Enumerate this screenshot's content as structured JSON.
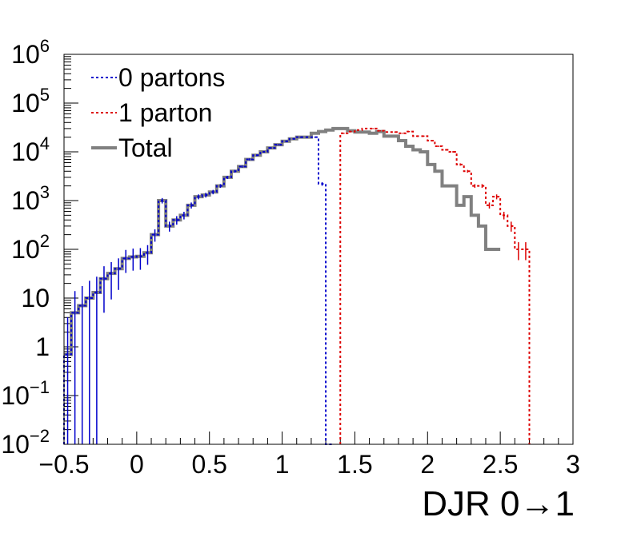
{
  "chart_data": {
    "type": "line",
    "title": "",
    "xlabel": "DJR 0→1",
    "ylabel": "",
    "xlim": [
      -0.5,
      3.0
    ],
    "ylim": [
      0.01,
      1000000
    ],
    "yscale": "log",
    "step": true,
    "x_ticks": [
      -0.5,
      0,
      0.5,
      1,
      1.5,
      2,
      2.5,
      3
    ],
    "x_tick_labels": [
      "−0.5",
      "0",
      "0.5",
      "1",
      "1.5",
      "2",
      "2.5",
      "3"
    ],
    "y_ticks": [
      {
        "value": 0.01,
        "base": "10",
        "exp": "−2"
      },
      {
        "value": 0.1,
        "base": "10",
        "exp": "−1"
      },
      {
        "value": 1,
        "base": "1",
        "exp": ""
      },
      {
        "value": 10,
        "base": "10",
        "exp": ""
      },
      {
        "value": 100,
        "base": "10",
        "exp": "2"
      },
      {
        "value": 1000,
        "base": "10",
        "exp": "3"
      },
      {
        "value": 10000,
        "base": "10",
        "exp": "4"
      },
      {
        "value": 100000,
        "base": "10",
        "exp": "5"
      },
      {
        "value": 1000000,
        "base": "10",
        "exp": "6"
      }
    ],
    "grid": false,
    "legend_position": "top-left",
    "bin_width": 0.05,
    "bin_start": -0.5,
    "series": [
      {
        "name": "0 partons",
        "color": "#0000cc",
        "style": "dotted",
        "start": -0.5,
        "values": [
          0.7,
          5,
          7,
          10,
          13,
          25,
          32,
          40,
          65,
          70,
          72,
          85,
          200,
          1000,
          300,
          400,
          500,
          800,
          1200,
          1300,
          1500,
          2000,
          3000,
          4000,
          5000,
          7000,
          8500,
          10000,
          12000,
          14000,
          16500,
          18500,
          20000,
          20000,
          20000,
          2200,
          0.01
        ]
      },
      {
        "name": "1 parton",
        "color": "#dd0000",
        "style": "dotted",
        "start": 1.4,
        "values": [
          24000,
          26000,
          28000,
          30000,
          30000,
          27000,
          25500,
          25500,
          24000,
          26000,
          21000,
          21000,
          17000,
          13000,
          11000,
          10000,
          5500,
          4000,
          2000,
          2000,
          800,
          1200,
          500,
          300,
          100,
          100
        ]
      },
      {
        "name": "Total",
        "color": "#808080",
        "style": "solid",
        "start": -0.5,
        "values": [
          0.7,
          5,
          7,
          10,
          13,
          25,
          32,
          40,
          65,
          70,
          72,
          85,
          200,
          1000,
          300,
          400,
          500,
          800,
          1200,
          1300,
          1500,
          2000,
          3000,
          4000,
          5000,
          7000,
          8500,
          10000,
          12000,
          14000,
          16500,
          18500,
          20000,
          20000,
          24000,
          26000,
          28000,
          30000,
          30000,
          27000,
          25500,
          25500,
          24000,
          26000,
          21000,
          21000,
          17000,
          13000,
          11000,
          10000,
          5500,
          4000,
          2000,
          2000,
          800,
          1200,
          500,
          300,
          100,
          100
        ]
      }
    ]
  }
}
